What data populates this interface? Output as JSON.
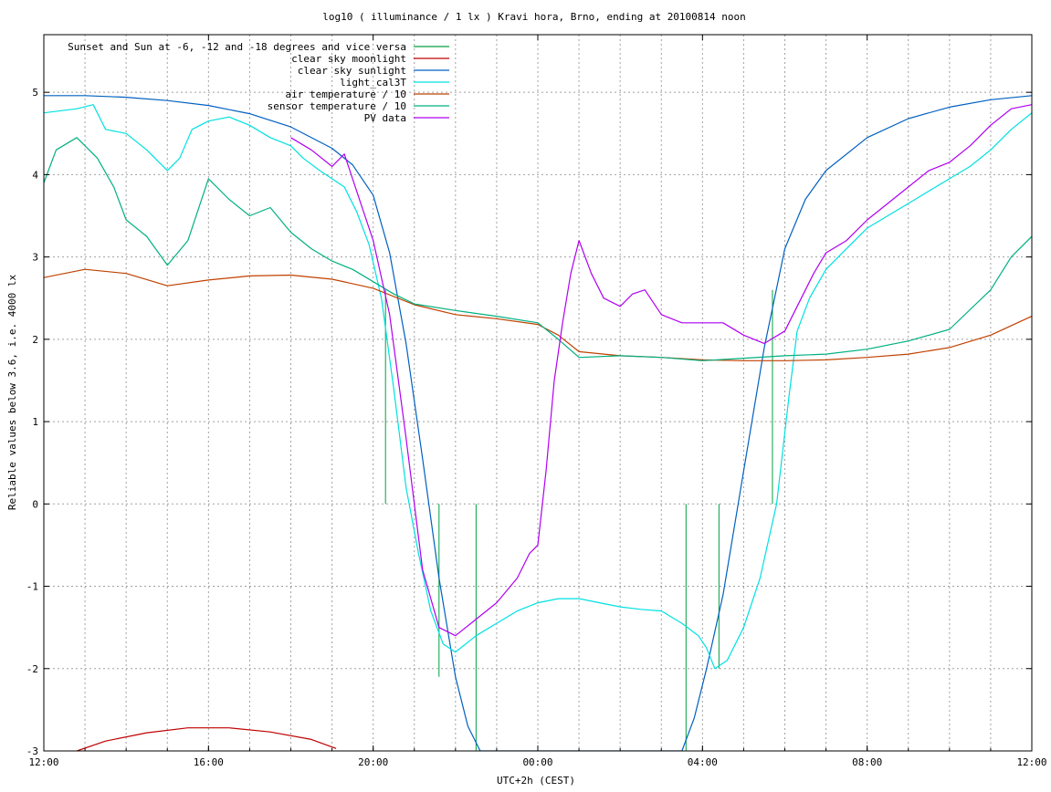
{
  "chart_data": {
    "type": "line",
    "title": "log10 ( illuminance / 1 lx ) Kravi hora, Brno, ending at 20100814 noon",
    "xlabel": "UTC+2h (CEST)",
    "ylabel": "Reliable values below 3.6, i.e. 4000 lx",
    "xlim": [
      0,
      24
    ],
    "ylim": [
      -3,
      5.7
    ],
    "grid": true,
    "legend_position": "top-left",
    "x_ticks": [
      {
        "v": 0,
        "label": "12:00"
      },
      {
        "v": 4,
        "label": "16:00"
      },
      {
        "v": 8,
        "label": "20:00"
      },
      {
        "v": 12,
        "label": "00:00"
      },
      {
        "v": 16,
        "label": "04:00"
      },
      {
        "v": 20,
        "label": "08:00"
      },
      {
        "v": 24,
        "label": "12:00"
      }
    ],
    "x_minor_grid_step": 1,
    "y_ticks": [
      {
        "v": -3,
        "label": "-3"
      },
      {
        "v": -2,
        "label": "-2"
      },
      {
        "v": -1,
        "label": "-1"
      },
      {
        "v": 0,
        "label": "0"
      },
      {
        "v": 1,
        "label": "1"
      },
      {
        "v": 2,
        "label": "2"
      },
      {
        "v": 3,
        "label": "3"
      },
      {
        "v": 4,
        "label": "4"
      },
      {
        "v": 5,
        "label": "5"
      }
    ],
    "series": [
      {
        "name": "Sunset and Sun at -6, -12 and -18 degrees and vice versa",
        "color": "#00a040",
        "kind": "impulses",
        "base": 0,
        "impulses": [
          {
            "x": 8.3,
            "y": 2.6
          },
          {
            "x": 9.6,
            "y": -2.1
          },
          {
            "x": 10.5,
            "y": -3.0
          },
          {
            "x": 15.6,
            "y": -3.0
          },
          {
            "x": 16.4,
            "y": -2.0
          },
          {
            "x": 17.7,
            "y": 2.6
          }
        ]
      },
      {
        "name": "clear sky moonlight",
        "color": "#c00000",
        "kind": "line",
        "points": [
          [
            0.8,
            -3.0
          ],
          [
            1.5,
            -2.88
          ],
          [
            2.5,
            -2.78
          ],
          [
            3.5,
            -2.72
          ],
          [
            4.0,
            -2.72
          ],
          [
            4.5,
            -2.72
          ],
          [
            5.5,
            -2.77
          ],
          [
            6.5,
            -2.86
          ],
          [
            7.1,
            -2.97
          ]
        ]
      },
      {
        "name": "clear sky sunlight",
        "color": "#0060c0",
        "kind": "line",
        "points": [
          [
            0,
            4.96
          ],
          [
            1,
            4.96
          ],
          [
            2,
            4.94
          ],
          [
            3,
            4.9
          ],
          [
            4,
            4.84
          ],
          [
            5,
            4.74
          ],
          [
            6,
            4.58
          ],
          [
            7,
            4.32
          ],
          [
            7.5,
            4.12
          ],
          [
            8.0,
            3.75
          ],
          [
            8.4,
            3.05
          ],
          [
            8.8,
            1.95
          ],
          [
            9.2,
            0.55
          ],
          [
            9.6,
            -0.9
          ],
          [
            10.0,
            -2.1
          ],
          [
            10.3,
            -2.7
          ],
          [
            10.6,
            -3.0
          ],
          [
            15.5,
            -3.0
          ],
          [
            15.8,
            -2.6
          ],
          [
            16.1,
            -2.0
          ],
          [
            16.5,
            -1.1
          ],
          [
            17.0,
            0.4
          ],
          [
            17.5,
            1.9
          ],
          [
            18.0,
            3.1
          ],
          [
            18.5,
            3.7
          ],
          [
            19.0,
            4.05
          ],
          [
            20,
            4.45
          ],
          [
            21,
            4.68
          ],
          [
            22,
            4.82
          ],
          [
            23,
            4.91
          ],
          [
            24,
            4.96
          ]
        ]
      },
      {
        "name": "light_cal3T",
        "color": "#00e0e0",
        "kind": "line",
        "points": [
          [
            0,
            4.75
          ],
          [
            0.8,
            4.8
          ],
          [
            1.2,
            4.85
          ],
          [
            1.5,
            4.55
          ],
          [
            2.0,
            4.5
          ],
          [
            2.5,
            4.3
          ],
          [
            2.8,
            4.15
          ],
          [
            3.0,
            4.05
          ],
          [
            3.3,
            4.2
          ],
          [
            3.6,
            4.55
          ],
          [
            4.0,
            4.65
          ],
          [
            4.5,
            4.7
          ],
          [
            5.0,
            4.6
          ],
          [
            5.5,
            4.45
          ],
          [
            6.0,
            4.35
          ],
          [
            6.3,
            4.2
          ],
          [
            6.7,
            4.05
          ],
          [
            7.0,
            3.95
          ],
          [
            7.3,
            3.85
          ],
          [
            7.6,
            3.55
          ],
          [
            7.9,
            3.15
          ],
          [
            8.2,
            2.5
          ],
          [
            8.5,
            1.4
          ],
          [
            8.8,
            0.2
          ],
          [
            9.1,
            -0.6
          ],
          [
            9.4,
            -1.3
          ],
          [
            9.7,
            -1.7
          ],
          [
            10.0,
            -1.8
          ],
          [
            10.5,
            -1.6
          ],
          [
            11.0,
            -1.45
          ],
          [
            11.5,
            -1.3
          ],
          [
            12.0,
            -1.2
          ],
          [
            12.5,
            -1.15
          ],
          [
            13.0,
            -1.15
          ],
          [
            13.5,
            -1.2
          ],
          [
            14.0,
            -1.25
          ],
          [
            14.5,
            -1.28
          ],
          [
            15.0,
            -1.3
          ],
          [
            15.5,
            -1.45
          ],
          [
            15.9,
            -1.6
          ],
          [
            16.1,
            -1.75
          ],
          [
            16.3,
            -2.0
          ],
          [
            16.6,
            -1.9
          ],
          [
            17.0,
            -1.5
          ],
          [
            17.4,
            -0.9
          ],
          [
            17.8,
            0.0
          ],
          [
            18.1,
            1.3
          ],
          [
            18.3,
            2.1
          ],
          [
            18.6,
            2.5
          ],
          [
            19.0,
            2.85
          ],
          [
            19.5,
            3.1
          ],
          [
            20.0,
            3.35
          ],
          [
            20.5,
            3.5
          ],
          [
            21.0,
            3.65
          ],
          [
            21.5,
            3.8
          ],
          [
            22.0,
            3.95
          ],
          [
            22.5,
            4.1
          ],
          [
            23.0,
            4.3
          ],
          [
            23.5,
            4.55
          ],
          [
            24.0,
            4.75
          ]
        ]
      },
      {
        "name": "air temperature / 10",
        "color": "#c04000",
        "kind": "line",
        "points": [
          [
            0,
            2.75
          ],
          [
            1,
            2.85
          ],
          [
            2,
            2.8
          ],
          [
            3,
            2.65
          ],
          [
            4,
            2.72
          ],
          [
            5,
            2.77
          ],
          [
            6,
            2.78
          ],
          [
            7,
            2.73
          ],
          [
            8,
            2.62
          ],
          [
            9,
            2.42
          ],
          [
            10,
            2.3
          ],
          [
            11,
            2.25
          ],
          [
            12,
            2.18
          ],
          [
            12.5,
            2.05
          ],
          [
            13,
            1.85
          ],
          [
            14,
            1.8
          ],
          [
            15,
            1.78
          ],
          [
            16,
            1.75
          ],
          [
            17,
            1.74
          ],
          [
            18,
            1.74
          ],
          [
            19,
            1.75
          ],
          [
            20,
            1.78
          ],
          [
            21,
            1.82
          ],
          [
            22,
            1.9
          ],
          [
            23,
            2.05
          ],
          [
            24,
            2.28
          ]
        ]
      },
      {
        "name": "sensor temperature / 10",
        "color": "#00b080",
        "kind": "line",
        "points": [
          [
            0,
            3.9
          ],
          [
            0.3,
            4.3
          ],
          [
            0.8,
            4.45
          ],
          [
            1.3,
            4.2
          ],
          [
            1.7,
            3.85
          ],
          [
            2.0,
            3.45
          ],
          [
            2.5,
            3.25
          ],
          [
            3.0,
            2.9
          ],
          [
            3.5,
            3.2
          ],
          [
            4.0,
            3.95
          ],
          [
            4.5,
            3.7
          ],
          [
            5.0,
            3.5
          ],
          [
            5.5,
            3.6
          ],
          [
            6.0,
            3.3
          ],
          [
            6.5,
            3.1
          ],
          [
            7.0,
            2.95
          ],
          [
            7.5,
            2.85
          ],
          [
            8.0,
            2.7
          ],
          [
            8.5,
            2.55
          ],
          [
            9.0,
            2.43
          ],
          [
            10.0,
            2.35
          ],
          [
            11.0,
            2.28
          ],
          [
            12.0,
            2.2
          ],
          [
            12.5,
            2.0
          ],
          [
            13.0,
            1.78
          ],
          [
            14.0,
            1.8
          ],
          [
            15.0,
            1.78
          ],
          [
            16.0,
            1.74
          ],
          [
            17.0,
            1.77
          ],
          [
            18.0,
            1.8
          ],
          [
            19.0,
            1.82
          ],
          [
            20.0,
            1.88
          ],
          [
            21.0,
            1.98
          ],
          [
            22.0,
            2.12
          ],
          [
            23.0,
            2.6
          ],
          [
            23.5,
            3.0
          ],
          [
            24.0,
            3.25
          ]
        ]
      },
      {
        "name": "PV data",
        "color": "#b000f0",
        "kind": "line",
        "points": [
          [
            6.0,
            4.45
          ],
          [
            6.5,
            4.3
          ],
          [
            7.0,
            4.1
          ],
          [
            7.3,
            4.25
          ],
          [
            7.6,
            3.8
          ],
          [
            8.0,
            3.2
          ],
          [
            8.4,
            2.3
          ],
          [
            8.8,
            0.8
          ],
          [
            9.2,
            -0.8
          ],
          [
            9.6,
            -1.5
          ],
          [
            10.0,
            -1.6
          ],
          [
            10.5,
            -1.4
          ],
          [
            11.0,
            -1.2
          ],
          [
            11.5,
            -0.9
          ],
          [
            11.8,
            -0.6
          ],
          [
            12.0,
            -0.5
          ],
          [
            12.2,
            0.4
          ],
          [
            12.4,
            1.5
          ],
          [
            12.6,
            2.2
          ],
          [
            12.8,
            2.8
          ],
          [
            13.0,
            3.2
          ],
          [
            13.3,
            2.8
          ],
          [
            13.6,
            2.5
          ],
          [
            14.0,
            2.4
          ],
          [
            14.3,
            2.55
          ],
          [
            14.6,
            2.6
          ],
          [
            15.0,
            2.3
          ],
          [
            15.5,
            2.2
          ],
          [
            16.0,
            2.2
          ],
          [
            16.5,
            2.2
          ],
          [
            17.0,
            2.05
          ],
          [
            17.5,
            1.95
          ],
          [
            18.0,
            2.1
          ],
          [
            18.3,
            2.4
          ],
          [
            18.7,
            2.8
          ],
          [
            19.0,
            3.05
          ],
          [
            19.5,
            3.2
          ],
          [
            20.0,
            3.45
          ],
          [
            20.5,
            3.65
          ],
          [
            21.0,
            3.85
          ],
          [
            21.5,
            4.05
          ],
          [
            22.0,
            4.15
          ],
          [
            22.5,
            4.35
          ],
          [
            23.0,
            4.6
          ],
          [
            23.5,
            4.8
          ],
          [
            24.0,
            4.85
          ]
        ]
      }
    ]
  }
}
